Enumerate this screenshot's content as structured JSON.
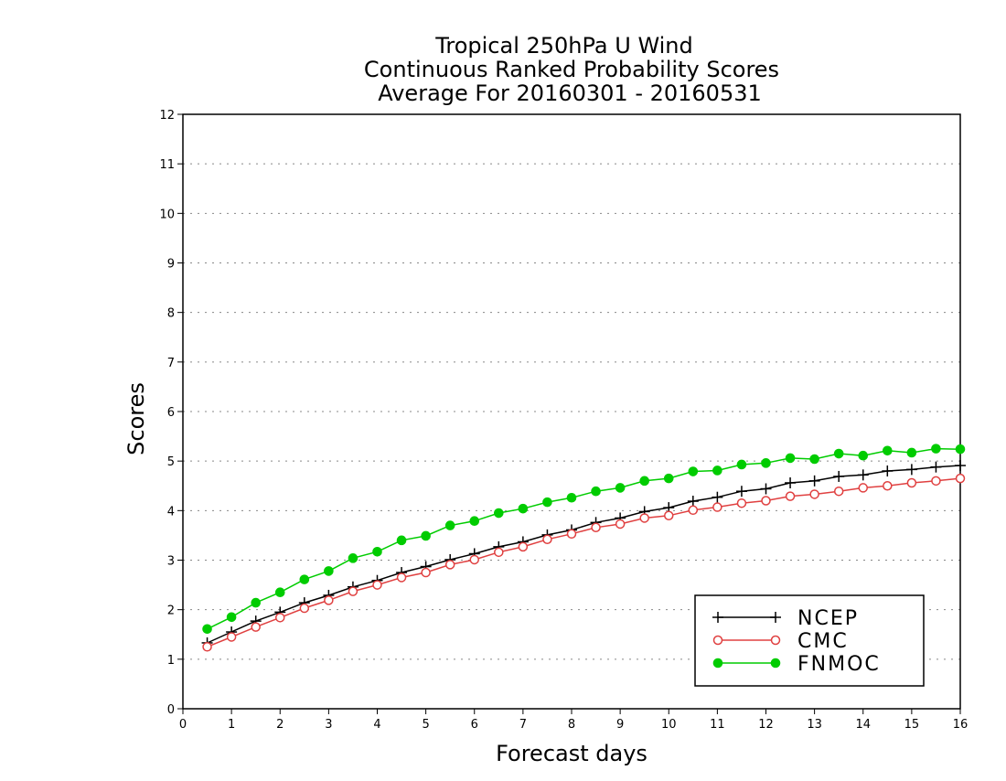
{
  "chart_data": {
    "type": "line",
    "title": [
      "Tropical 250hPa U Wind",
      "Continuous Ranked Probability Scores",
      "Average For 20160301 - 20160531"
    ],
    "xlabel": "Forecast days",
    "ylabel": "Scores",
    "xlim": [
      0,
      16
    ],
    "ylim": [
      0,
      12
    ],
    "xticks": [
      0,
      1,
      2,
      3,
      4,
      5,
      6,
      7,
      8,
      9,
      10,
      11,
      12,
      13,
      14,
      15,
      16
    ],
    "yticks": [
      0,
      1,
      2,
      3,
      4,
      5,
      6,
      7,
      8,
      9,
      10,
      11,
      12
    ],
    "grid": "horizontal dotted",
    "legend_position": "bottom-right",
    "x": [
      0.5,
      1,
      1.5,
      2,
      2.5,
      3,
      3.5,
      4,
      4.5,
      5,
      5.5,
      6,
      6.5,
      7,
      7.5,
      8,
      8.5,
      9,
      9.5,
      10,
      10.5,
      11,
      11.5,
      12,
      12.5,
      13,
      13.5,
      14,
      14.5,
      15,
      15.5,
      16
    ],
    "series": [
      {
        "name": "NCEP",
        "color": "#000000",
        "marker": "plus",
        "values": [
          1.33,
          1.55,
          1.77,
          1.95,
          2.14,
          2.29,
          2.46,
          2.59,
          2.75,
          2.87,
          3.01,
          3.13,
          3.27,
          3.37,
          3.51,
          3.61,
          3.76,
          3.85,
          3.98,
          4.06,
          4.19,
          4.27,
          4.39,
          4.44,
          4.56,
          4.6,
          4.69,
          4.72,
          4.8,
          4.83,
          4.88,
          4.91
        ]
      },
      {
        "name": "CMC",
        "color": "#e04040",
        "marker": "open-circle",
        "values": [
          1.25,
          1.45,
          1.65,
          1.84,
          2.03,
          2.19,
          2.37,
          2.5,
          2.65,
          2.75,
          2.91,
          3.01,
          3.16,
          3.27,
          3.42,
          3.53,
          3.66,
          3.73,
          3.85,
          3.9,
          4.01,
          4.07,
          4.15,
          4.2,
          4.29,
          4.33,
          4.39,
          4.46,
          4.5,
          4.56,
          4.6,
          4.65
        ]
      },
      {
        "name": "FNMOC",
        "color": "#00cc00",
        "marker": "filled-circle",
        "values": [
          1.61,
          1.85,
          2.14,
          2.35,
          2.61,
          2.78,
          3.04,
          3.17,
          3.4,
          3.49,
          3.7,
          3.79,
          3.95,
          4.04,
          4.17,
          4.26,
          4.39,
          4.46,
          4.6,
          4.65,
          4.79,
          4.81,
          4.93,
          4.96,
          5.06,
          5.04,
          5.15,
          5.11,
          5.21,
          5.17,
          5.25,
          5.24
        ]
      }
    ]
  }
}
